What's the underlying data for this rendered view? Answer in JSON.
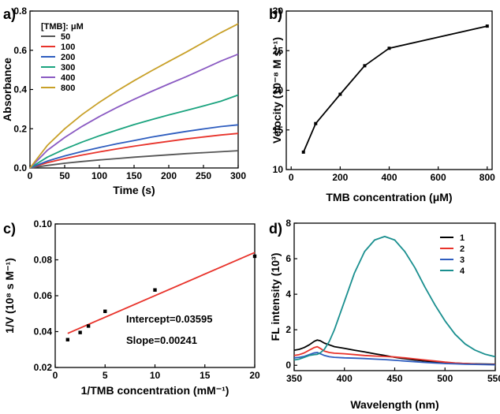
{
  "chart_data": [
    {
      "type": "line",
      "panel_label": "a)",
      "xlabel": "Time (s)",
      "ylabel": "Absorbance",
      "xlim": [
        0,
        300
      ],
      "ylim": [
        0,
        0.8
      ],
      "xticks": [
        "0",
        "50",
        "100",
        "150",
        "200",
        "250",
        "300"
      ],
      "yticks": [
        "0.0",
        "0.2",
        "0.4",
        "0.6",
        "0.8"
      ],
      "legend_title": "[TMB]: μM",
      "legend_position": "top-left",
      "x": [
        0,
        25,
        50,
        75,
        100,
        125,
        150,
        175,
        200,
        225,
        250,
        275,
        300
      ],
      "series": [
        {
          "name": "50",
          "color": "#555555",
          "values": [
            0.0,
            0.013,
            0.024,
            0.033,
            0.041,
            0.048,
            0.055,
            0.061,
            0.067,
            0.073,
            0.078,
            0.083,
            0.088
          ]
        },
        {
          "name": "100",
          "color": "#e8332b",
          "values": [
            0.0,
            0.027,
            0.048,
            0.066,
            0.082,
            0.097,
            0.111,
            0.124,
            0.136,
            0.148,
            0.158,
            0.168,
            0.176
          ]
        },
        {
          "name": "200",
          "color": "#2e5dbf",
          "values": [
            0.0,
            0.035,
            0.061,
            0.084,
            0.104,
            0.123,
            0.14,
            0.157,
            0.172,
            0.186,
            0.199,
            0.211,
            0.22
          ]
        },
        {
          "name": "300",
          "color": "#1aa37e",
          "values": [
            0.0,
            0.055,
            0.096,
            0.132,
            0.164,
            0.193,
            0.221,
            0.246,
            0.27,
            0.293,
            0.316,
            0.34,
            0.372
          ]
        },
        {
          "name": "400",
          "color": "#8a5ac2",
          "values": [
            0.0,
            0.09,
            0.155,
            0.212,
            0.262,
            0.308,
            0.35,
            0.39,
            0.428,
            0.465,
            0.505,
            0.545,
            0.58
          ]
        },
        {
          "name": "800",
          "color": "#c8a028",
          "values": [
            0.0,
            0.115,
            0.2,
            0.272,
            0.335,
            0.392,
            0.445,
            0.495,
            0.543,
            0.59,
            0.64,
            0.69,
            0.735
          ]
        }
      ]
    },
    {
      "type": "line",
      "panel_label": "b)",
      "xlabel": "TMB concentration (μM)",
      "ylabel": "Velocity (10⁻⁸ M s⁻¹)",
      "xlim": [
        -20,
        820
      ],
      "ylim": [
        10,
        30
      ],
      "xticks": [
        "0",
        "200",
        "400",
        "600",
        "800"
      ],
      "yticks": [
        "10",
        "15",
        "20",
        "25",
        "30"
      ],
      "series": [
        {
          "color": "#000000",
          "x": [
            50,
            100,
            200,
            300,
            400,
            800
          ],
          "values": [
            12.2,
            15.8,
            19.5,
            23.1,
            25.3,
            28.1
          ]
        }
      ]
    },
    {
      "type": "scatter",
      "panel_label": "c)",
      "xlabel": "1/TMB concentration (mM⁻¹)",
      "ylabel": "1/V (10⁸ s M⁻¹)",
      "xlim": [
        0,
        20
      ],
      "ylim": [
        0.02,
        0.1
      ],
      "xticks": [
        "0",
        "5",
        "10",
        "15",
        "20"
      ],
      "yticks": [
        "0.02",
        "0.04",
        "0.06",
        "0.08",
        "0.10"
      ],
      "points": {
        "x": [
          1.25,
          2.5,
          3.33,
          5,
          10,
          20
        ],
        "y": [
          0.0355,
          0.0395,
          0.0431,
          0.0513,
          0.0632,
          0.082
        ]
      },
      "fit": {
        "color": "#e8332b",
        "x": [
          1.25,
          20
        ],
        "y": [
          0.039,
          0.0841
        ]
      },
      "annotations": [
        "Intercept=0.03595",
        "Slope=0.00241"
      ]
    },
    {
      "type": "line",
      "panel_label": "d)",
      "xlabel": "Wavelength (nm)",
      "ylabel": "FL intensity (10³)",
      "xlim": [
        350,
        550
      ],
      "ylim": [
        -0.3,
        8
      ],
      "xticks": [
        "350",
        "400",
        "450",
        "500",
        "550"
      ],
      "yticks": [
        "0",
        "2",
        "4",
        "6",
        "8"
      ],
      "legend_position": "top-right",
      "x": [
        350,
        355,
        360,
        365,
        370,
        373,
        376,
        380,
        385,
        390,
        400,
        410,
        420,
        430,
        440,
        450,
        460,
        470,
        480,
        490,
        500,
        510,
        520,
        530,
        540,
        550
      ],
      "series": [
        {
          "name": "1",
          "color": "#000000",
          "values": [
            0.85,
            0.9,
            1.0,
            1.15,
            1.35,
            1.42,
            1.38,
            1.25,
            1.15,
            1.05,
            0.95,
            0.85,
            0.75,
            0.65,
            0.55,
            0.45,
            0.37,
            0.3,
            0.24,
            0.19,
            0.15,
            0.12,
            0.1,
            0.08,
            0.07,
            0.06
          ]
        },
        {
          "name": "2",
          "color": "#e8332b",
          "values": [
            0.55,
            0.6,
            0.7,
            0.85,
            1.0,
            1.05,
            0.95,
            0.8,
            0.72,
            0.68,
            0.65,
            0.6,
            0.55,
            0.52,
            0.5,
            0.47,
            0.42,
            0.36,
            0.3,
            0.24,
            0.18,
            0.13,
            0.1,
            0.07,
            0.05,
            0.04
          ]
        },
        {
          "name": "3",
          "color": "#2e5dbf",
          "values": [
            0.42,
            0.45,
            0.5,
            0.6,
            0.7,
            0.72,
            0.65,
            0.55,
            0.48,
            0.45,
            0.42,
            0.4,
            0.38,
            0.35,
            0.32,
            0.28,
            0.24,
            0.2,
            0.16,
            0.13,
            0.1,
            0.08,
            0.06,
            0.05,
            0.04,
            0.03
          ]
        },
        {
          "name": "4",
          "color": "#1a8f8f",
          "values": [
            0.3,
            0.35,
            0.45,
            0.55,
            0.6,
            0.62,
            0.7,
            0.9,
            1.35,
            2.0,
            3.6,
            5.2,
            6.4,
            7.05,
            7.25,
            7.05,
            6.4,
            5.5,
            4.4,
            3.4,
            2.5,
            1.75,
            1.2,
            0.85,
            0.62,
            0.48
          ]
        }
      ]
    }
  ]
}
